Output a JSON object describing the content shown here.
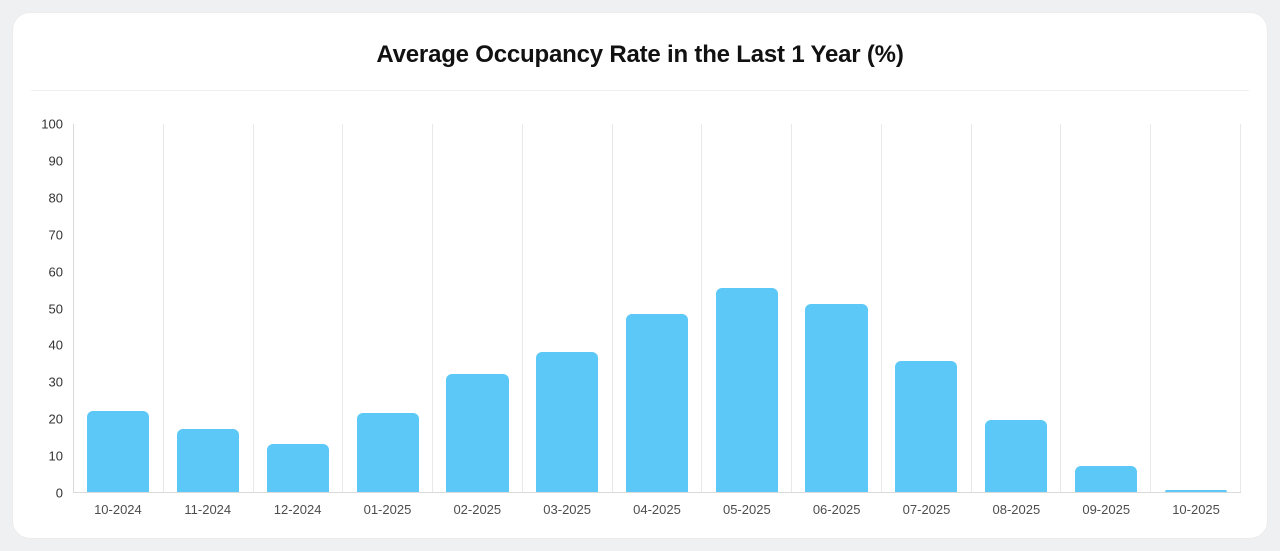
{
  "chart": {
    "title": "Average Occupancy Rate in the Last 1 Year (%)"
  },
  "chart_data": {
    "type": "bar",
    "title": "Average Occupancy Rate in the Last 1 Year (%)",
    "categories": [
      "10-2024",
      "11-2024",
      "12-2024",
      "01-2025",
      "02-2025",
      "03-2025",
      "04-2025",
      "05-2025",
      "06-2025",
      "07-2025",
      "08-2025",
      "09-2025",
      "10-2025"
    ],
    "values": [
      22,
      17,
      13,
      21.5,
      32,
      38,
      48.5,
      55.5,
      51,
      35.5,
      19.5,
      7,
      0.5
    ],
    "xlabel": "",
    "ylabel": "",
    "ylim": [
      0,
      100
    ],
    "yticks": [
      0,
      10,
      20,
      30,
      40,
      50,
      60,
      70,
      80,
      90,
      100
    ],
    "bar_color": "#5BC8F7",
    "grid": "vertical-gridlines",
    "legend": "none"
  }
}
